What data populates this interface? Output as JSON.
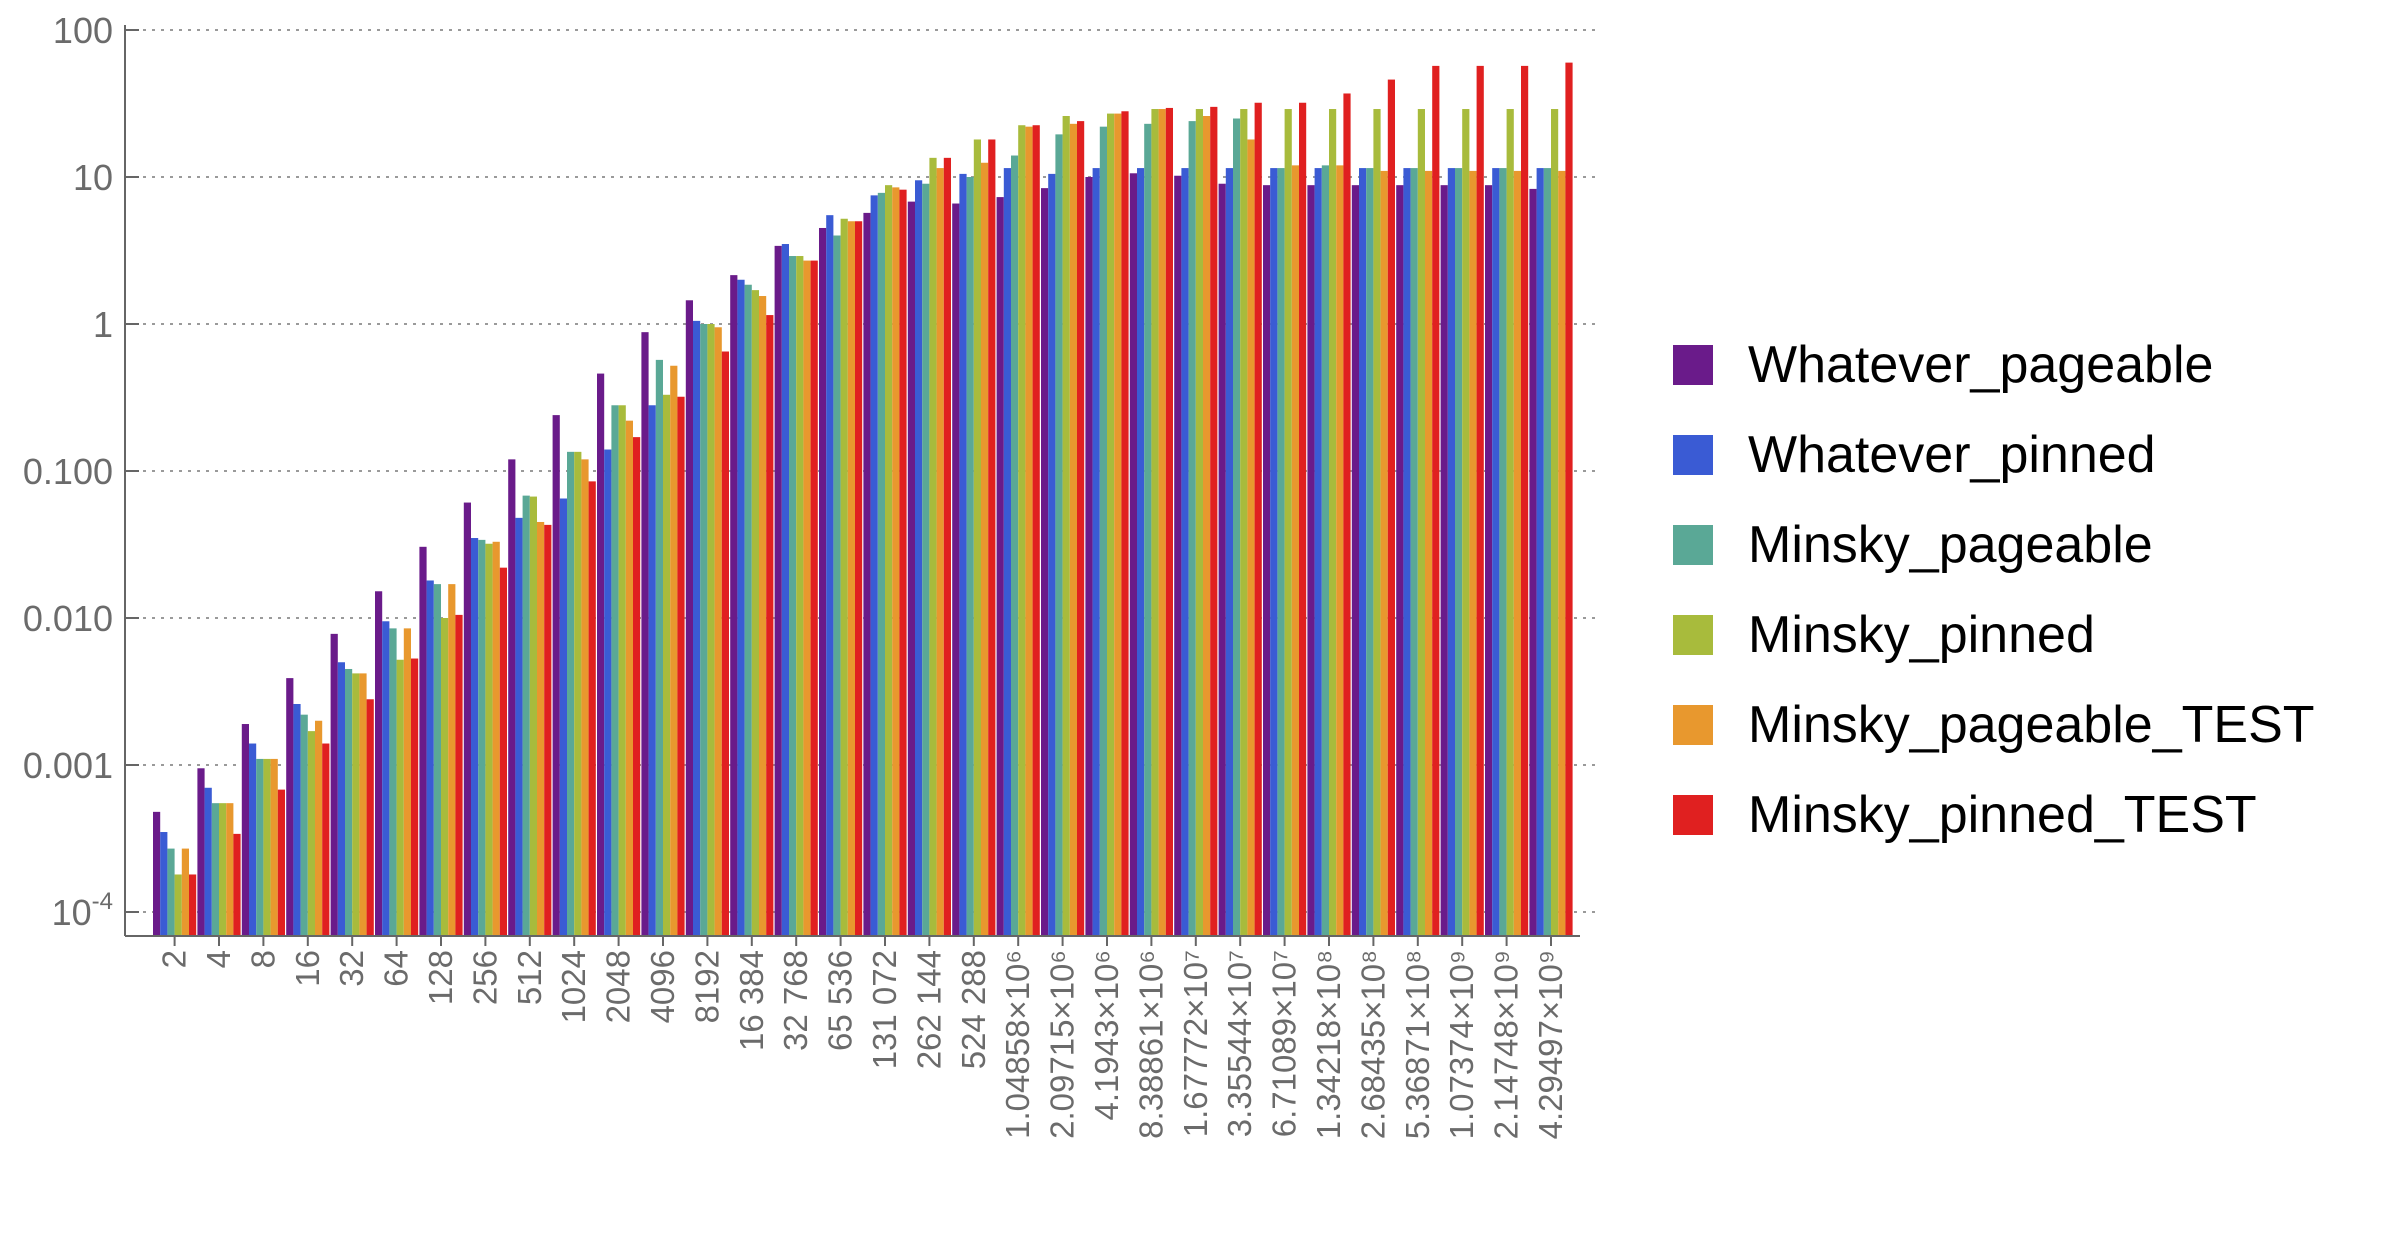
{
  "chart_data": {
    "type": "bar",
    "yscale": "log",
    "ylim": [
      8e-05,
      100
    ],
    "grid": "horizontal-dotted",
    "legend_position": "right",
    "y_ticks": [
      {
        "value": 100,
        "label": "100",
        "sup": ""
      },
      {
        "value": 10,
        "label": "10",
        "sup": ""
      },
      {
        "value": 1,
        "label": "1",
        "sup": ""
      },
      {
        "value": 0.1,
        "label": "0.100",
        "sup": ""
      },
      {
        "value": 0.01,
        "label": "0.010",
        "sup": ""
      },
      {
        "value": 0.001,
        "label": "0.001",
        "sup": ""
      },
      {
        "value": 0.0001,
        "label": "10",
        "sup": "-4"
      }
    ],
    "categories": [
      "2",
      "4",
      "8",
      "16",
      "32",
      "64",
      "128",
      "256",
      "512",
      "1024",
      "2048",
      "4096",
      "8192",
      "16 384",
      "32 768",
      "65 536",
      "131 072",
      "262 144",
      "524 288",
      "1.04858×10⁶",
      "2.09715×10⁶",
      "4.1943×10⁶",
      "8.38861×10⁶",
      "1.67772×10⁷",
      "3.35544×10⁷",
      "6.71089×10⁷",
      "1.34218×10⁸",
      "2.68435×10⁸",
      "5.36871×10⁸",
      "1.07374×10⁹",
      "2.14748×10⁹",
      "4.29497×10⁹"
    ],
    "series": [
      {
        "name": "Whatever_pageable",
        "color": "#6a1b8a",
        "values": [
          0.00048,
          0.00095,
          0.0019,
          0.0039,
          0.0078,
          0.0152,
          0.0305,
          0.061,
          0.12,
          0.24,
          0.46,
          0.88,
          1.45,
          2.15,
          3.4,
          4.5,
          5.7,
          6.8,
          6.6,
          7.3,
          8.4,
          10.0,
          10.6,
          10.2,
          9.0,
          8.8,
          8.8,
          8.8,
          8.8,
          8.8,
          8.8,
          8.3
        ]
      },
      {
        "name": "Whatever_pinned",
        "color": "#3a5bd4",
        "values": [
          0.00035,
          0.0007,
          0.0014,
          0.0026,
          0.005,
          0.0095,
          0.018,
          0.035,
          0.048,
          0.065,
          0.14,
          0.28,
          1.05,
          2.0,
          3.5,
          5.5,
          7.5,
          9.5,
          10.5,
          11.5,
          10.5,
          11.5,
          11.5,
          11.5,
          11.5,
          11.5,
          11.5,
          11.5,
          11.5,
          11.5,
          11.5,
          11.5
        ]
      },
      {
        "name": "Minsky_pageable",
        "color": "#5aa896",
        "values": [
          0.00027,
          0.00055,
          0.0011,
          0.0022,
          0.0045,
          0.0085,
          0.017,
          0.034,
          0.068,
          0.135,
          0.28,
          0.57,
          1.0,
          1.85,
          2.9,
          4.0,
          7.8,
          9.0,
          10.0,
          14.0,
          19.5,
          22.0,
          23.0,
          24.0,
          25.0,
          11.5,
          12.0,
          11.5,
          11.5,
          11.5,
          11.5,
          11.5
        ]
      },
      {
        "name": "Minsky_pinned",
        "color": "#a8bb3c",
        "values": [
          0.00018,
          0.00055,
          0.0011,
          0.0017,
          0.0042,
          0.0052,
          0.01,
          0.032,
          0.067,
          0.135,
          0.28,
          0.33,
          1.0,
          1.7,
          2.9,
          5.2,
          8.8,
          13.5,
          18.0,
          22.5,
          26.0,
          27.0,
          29.0,
          29.0,
          29.0,
          29.0,
          29.0,
          29.0,
          29.0,
          29.0,
          29.0,
          29.0
        ]
      },
      {
        "name": "Minsky_pageable_TEST",
        "color": "#e8982e",
        "values": [
          0.00027,
          0.00055,
          0.0011,
          0.002,
          0.0042,
          0.0085,
          0.017,
          0.033,
          0.045,
          0.12,
          0.22,
          0.52,
          0.95,
          1.55,
          2.7,
          5.0,
          8.5,
          11.5,
          12.5,
          22.0,
          23.0,
          27.0,
          29.0,
          26.0,
          18.0,
          12.0,
          12.0,
          11.0,
          11.0,
          11.0,
          11.0,
          11.0
        ]
      },
      {
        "name": "Minsky_pinned_TEST",
        "color": "#e02020",
        "values": [
          0.00018,
          0.00034,
          0.00068,
          0.0014,
          0.0028,
          0.0053,
          0.0105,
          0.022,
          0.043,
          0.085,
          0.17,
          0.32,
          0.65,
          1.15,
          2.7,
          5.0,
          8.2,
          13.5,
          18.0,
          22.5,
          24.0,
          28.0,
          29.5,
          30.0,
          32.0,
          32.0,
          37.0,
          46.0,
          57.0,
          57.0,
          57.0,
          60.0
        ]
      }
    ]
  }
}
